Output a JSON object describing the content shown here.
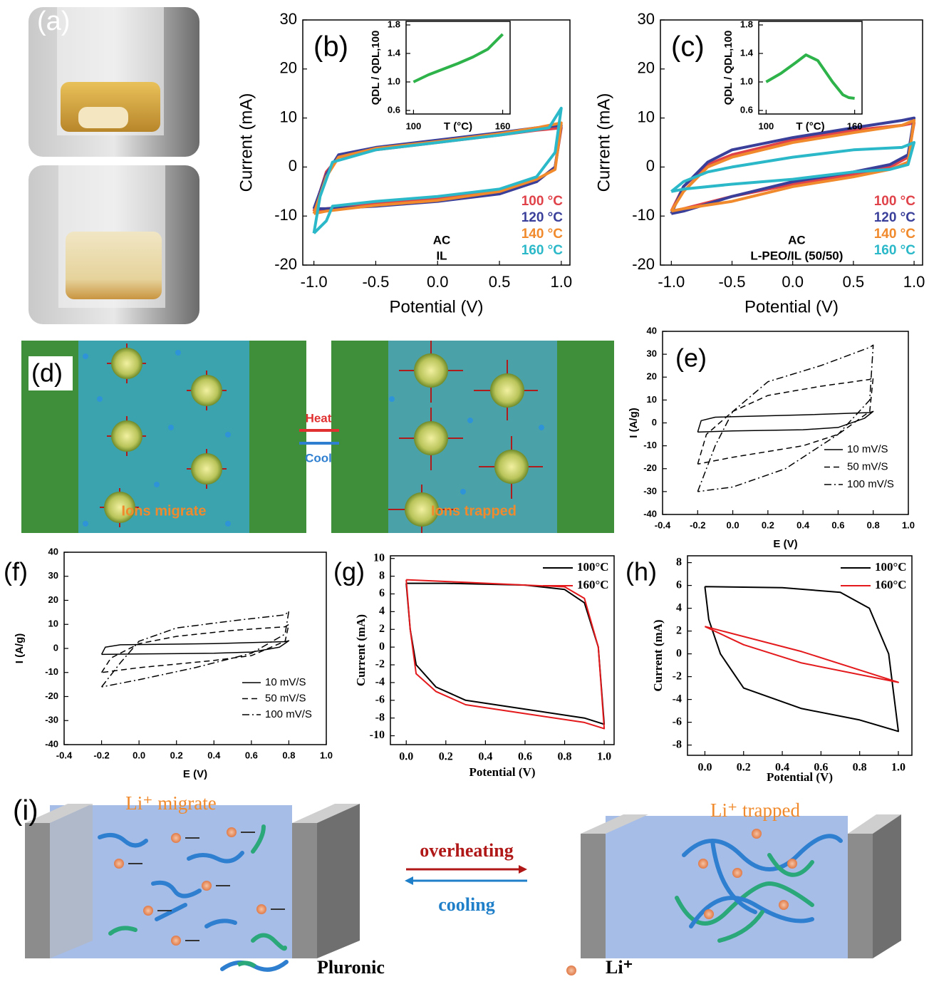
{
  "photo_a": {
    "label": "(a)"
  },
  "diagram_d": {
    "label": "(d)",
    "arrow_top": "Heat",
    "arrow_bottom": "Cool",
    "left": "Ions migrate",
    "right": "Ions trapped"
  },
  "diagram_i": {
    "label": "(i)",
    "left": "Li⁺ migrate",
    "right": "Li⁺ trapped",
    "arrow_top": "overheating",
    "arrow_bottom": "cooling",
    "legend": [
      "Pluronic",
      "Li⁺"
    ]
  },
  "chart_data": [
    {
      "type": "line",
      "panel_label": "(b)",
      "xlabel": "Potential (V)",
      "ylabel": "Current (mA)",
      "xlim": [
        -1.09,
        1.07
      ],
      "ylim": [
        -20,
        30
      ],
      "xticks": [
        {
          "value": -1,
          "label": "-1.0"
        },
        -0.5,
        {
          "value": 0,
          "label": "0.0"
        },
        0.5,
        {
          "value": 1,
          "label": "1.0"
        }
      ],
      "yticks": [
        30,
        20,
        10,
        0,
        -10,
        -20
      ],
      "annotations": [
        "AC",
        "IL"
      ],
      "legend": "lower right",
      "series": [
        {
          "name": "100 °C",
          "color": "#e0424a",
          "x": [
            -1,
            -0.9,
            -0.8,
            -0.5,
            0,
            0.5,
            0.8,
            1,
            0.95,
            0.8,
            0.5,
            0,
            -0.5,
            -0.9,
            -1
          ],
          "values": [
            -9,
            -1,
            2,
            3.5,
            5,
            6.5,
            7.5,
            8,
            0,
            -3,
            -5,
            -6.5,
            -7.5,
            -8.5,
            -9
          ]
        },
        {
          "name": "120 °C",
          "color": "#3a3f9a",
          "x": [
            -1,
            -0.9,
            -0.8,
            -0.5,
            0,
            0.5,
            0.8,
            1,
            0.95,
            0.8,
            0.5,
            0,
            -0.5,
            -0.9,
            -1
          ],
          "values": [
            -8.5,
            -1.5,
            2.5,
            4,
            5.5,
            7,
            8,
            8.5,
            0,
            -3,
            -5.5,
            -7,
            -8,
            -8.5,
            -8.5
          ]
        },
        {
          "name": "140 °C",
          "color": "#f08a2c",
          "x": [
            -1,
            -0.9,
            -0.8,
            -0.5,
            0,
            0.5,
            0.8,
            1,
            0.95,
            0.8,
            0.5,
            0,
            -0.5,
            -0.9,
            -1
          ],
          "values": [
            -9.5,
            -2,
            2,
            3.8,
            5.2,
            6.8,
            8,
            9,
            -0.5,
            -2.5,
            -5,
            -6.8,
            -7.8,
            -9,
            -9.5
          ]
        },
        {
          "name": "160 °C",
          "color": "#2bb8c8",
          "x": [
            -1,
            -0.95,
            -0.85,
            -0.5,
            0,
            0.5,
            0.9,
            1,
            0.95,
            0.8,
            0.5,
            0,
            -0.5,
            -0.85,
            -0.9,
            -1
          ],
          "values": [
            -13.5,
            -6,
            1,
            3.5,
            5,
            6.5,
            8,
            12,
            3,
            -2,
            -4.5,
            -6,
            -7,
            -8,
            -11,
            -13.5
          ]
        }
      ]
    },
    {
      "type": "line",
      "xlabel": "T (°C)",
      "ylabel": "QDL / QDL,100",
      "xlim": [
        95,
        165
      ],
      "ylim": [
        0.55,
        1.85
      ],
      "xticks": [
        100,
        160
      ],
      "yticks": [
        1.8,
        1.4,
        {
          "value": 1,
          "label": "1.0"
        },
        0.6
      ],
      "series": [
        {
          "color": "#2db34a",
          "x": [
            100,
            110,
            120,
            130,
            140,
            150,
            160
          ],
          "values": [
            1.0,
            1.1,
            1.18,
            1.26,
            1.35,
            1.46,
            1.67
          ]
        }
      ]
    },
    {
      "type": "line",
      "panel_label": "(c)",
      "xlabel": "Potential (V)",
      "ylabel": "Current (mA)",
      "xlim": [
        -1.09,
        1.07
      ],
      "ylim": [
        -20,
        30
      ],
      "xticks": [
        {
          "value": -1,
          "label": "-1.0"
        },
        -0.5,
        {
          "value": 0,
          "label": "0.0"
        },
        0.5,
        {
          "value": 1,
          "label": "1.0"
        }
      ],
      "yticks": [
        30,
        20,
        10,
        0,
        -10,
        -20
      ],
      "annotations": [
        "AC",
        "L-PEO/IL (50/50)"
      ],
      "legend": "lower right",
      "series": [
        {
          "name": "100 °C",
          "color": "#e0424a",
          "x": [
            -1,
            -0.9,
            -0.7,
            -0.5,
            0,
            0.5,
            0.9,
            1,
            0.95,
            0.8,
            0.5,
            0,
            -0.5,
            -0.9,
            -1
          ],
          "values": [
            -9,
            -4,
            0.5,
            2.5,
            5.5,
            7.5,
            8.5,
            9,
            2,
            0,
            -1.5,
            -3.5,
            -6,
            -8.5,
            -9
          ]
        },
        {
          "name": "120 °C",
          "color": "#3a3f9a",
          "x": [
            -1,
            -0.9,
            -0.7,
            -0.5,
            0,
            0.5,
            0.9,
            1,
            0.95,
            0.8,
            0.5,
            0,
            -0.5,
            -0.9,
            -1
          ],
          "values": [
            -9.5,
            -4,
            1,
            3.5,
            6,
            8,
            9.5,
            10,
            2.5,
            0.5,
            -1,
            -3,
            -6,
            -9,
            -9.5
          ]
        },
        {
          "name": "140 °C",
          "color": "#f08a2c",
          "x": [
            -1,
            -0.9,
            -0.7,
            -0.5,
            0,
            0.5,
            0.9,
            1,
            0.95,
            0.8,
            0.5,
            0,
            -0.5,
            -0.9,
            -1
          ],
          "values": [
            -9,
            -5,
            0,
            2,
            5,
            7,
            8.5,
            9.5,
            1,
            -0.5,
            -2,
            -4,
            -7,
            -8.5,
            -9
          ]
        },
        {
          "name": "160 °C",
          "color": "#2bb8c8",
          "x": [
            -1,
            -0.9,
            -0.7,
            -0.5,
            0,
            0.5,
            0.9,
            1,
            0.95,
            0.8,
            0.5,
            0,
            -0.5,
            -0.9,
            -1
          ],
          "values": [
            -5,
            -3,
            -1,
            0,
            2,
            3.5,
            4,
            5,
            0.5,
            -0.5,
            -1,
            -2.5,
            -3.5,
            -4.5,
            -5
          ]
        }
      ]
    },
    {
      "type": "line",
      "xlabel": "T (°C)",
      "ylabel": "QDL / QDL,100",
      "xlim": [
        95,
        165
      ],
      "ylim": [
        0.55,
        1.85
      ],
      "xticks": [
        100,
        160
      ],
      "yticks": [
        1.8,
        1.4,
        {
          "value": 1,
          "label": "1.0"
        },
        0.6
      ],
      "series": [
        {
          "color": "#2db34a",
          "x": [
            100,
            110,
            120,
            127,
            135,
            145,
            152,
            156,
            160
          ],
          "values": [
            1.0,
            1.12,
            1.27,
            1.38,
            1.3,
            1.0,
            0.82,
            0.78,
            0.77
          ]
        }
      ]
    },
    {
      "type": "line",
      "panel_label": "(e)",
      "xlabel": "E (V)",
      "ylabel": "I (A/g)",
      "xlim": [
        -0.4,
        1.0
      ],
      "ylim": [
        -40,
        40
      ],
      "xticks": [
        -0.4,
        -0.2,
        {
          "value": 0,
          "label": "0.0"
        },
        0.2,
        0.4,
        0.6,
        0.8,
        {
          "value": 1,
          "label": "1.0"
        }
      ],
      "yticks": [
        40,
        30,
        20,
        10,
        0,
        -10,
        -20,
        -30,
        -40
      ],
      "legend": "lower right",
      "series": [
        {
          "name": "10 mV/S",
          "color": "#000000",
          "dash": "solid",
          "x": [
            -0.2,
            -0.18,
            -0.1,
            0.4,
            0.78,
            0.8,
            0.75,
            0.6,
            0.4,
            0,
            -0.2
          ],
          "values": [
            -4,
            1,
            2.5,
            3.5,
            4.5,
            5,
            2,
            -2,
            -3,
            -3.5,
            -4
          ]
        },
        {
          "name": "50 mV/S",
          "color": "#000000",
          "dash": "dashed",
          "x": [
            -0.2,
            -0.15,
            0,
            0.2,
            0.5,
            0.78,
            0.8,
            0.78,
            0.6,
            0.4,
            0,
            -0.2
          ],
          "values": [
            -18,
            -5,
            5,
            12,
            16,
            19,
            20,
            5,
            -5,
            -10,
            -15,
            -18
          ]
        },
        {
          "name": "100 mV/S",
          "color": "#000000",
          "dash": "dashdot",
          "x": [
            -0.2,
            -0.1,
            0,
            0.2,
            0.5,
            0.78,
            0.8,
            0.78,
            0.6,
            0.3,
            0,
            -0.2
          ],
          "values": [
            -30,
            -10,
            5,
            18,
            25,
            33,
            34,
            10,
            -5,
            -20,
            -28,
            -30
          ]
        }
      ]
    },
    {
      "type": "line",
      "panel_label": "(f)",
      "xlabel": "E (V)",
      "ylabel": "I (A/g)",
      "xlim": [
        -0.4,
        1.0
      ],
      "ylim": [
        -40,
        40
      ],
      "xticks": [
        -0.4,
        -0.2,
        {
          "value": 0,
          "label": "0.0"
        },
        0.2,
        0.4,
        0.6,
        0.8,
        {
          "value": 1,
          "label": "1.0"
        }
      ],
      "yticks": [
        40,
        30,
        20,
        10,
        0,
        -10,
        -20,
        -30,
        -40
      ],
      "legend": "lower right",
      "series": [
        {
          "name": "10 mV/S",
          "color": "#000000",
          "dash": "solid",
          "x": [
            -0.2,
            -0.18,
            -0.1,
            0.4,
            0.78,
            0.8,
            0.75,
            0.6,
            0.4,
            0,
            -0.2
          ],
          "values": [
            -2.5,
            0.5,
            1.5,
            2,
            2.8,
            3.2,
            0.5,
            -1.5,
            -2,
            -2.3,
            -2.5
          ]
        },
        {
          "name": "50 mV/S",
          "color": "#000000",
          "dash": "dashed",
          "x": [
            -0.2,
            -0.15,
            0,
            0.2,
            0.5,
            0.78,
            0.8,
            0.78,
            0.6,
            0.4,
            0,
            -0.2
          ],
          "values": [
            -10,
            -4,
            2,
            5,
            7.5,
            9,
            10,
            3,
            -3,
            -5,
            -8,
            -10
          ]
        },
        {
          "name": "100 mV/S",
          "color": "#000000",
          "dash": "dashdot",
          "x": [
            -0.2,
            -0.1,
            0,
            0.2,
            0.5,
            0.78,
            0.8,
            0.78,
            0.6,
            0.3,
            0,
            -0.2
          ],
          "values": [
            -16,
            -6,
            3,
            8.5,
            11.5,
            14,
            15.5,
            6,
            -2,
            -8,
            -13,
            -16
          ]
        }
      ]
    },
    {
      "type": "line",
      "panel_label": "(g)",
      "xlabel": "Potential (V)",
      "ylabel": "Current (mA)",
      "xlim": [
        -0.08,
        1.05
      ],
      "ylim": [
        -11,
        10.3
      ],
      "xticks": [
        {
          "value": 0,
          "label": "0.0"
        },
        0.2,
        0.4,
        0.6,
        0.8,
        {
          "value": 1,
          "label": "1.0"
        }
      ],
      "yticks": [
        10,
        8,
        6,
        4,
        2,
        0,
        -2,
        -4,
        -6,
        -8,
        -10
      ],
      "legend": "upper right",
      "series": [
        {
          "name": "100°C",
          "color": "#000000",
          "x": [
            0,
            0.2,
            0.6,
            0.8,
            0.9,
            0.97,
            1,
            0.9,
            0.6,
            0.3,
            0.15,
            0.05,
            0.02,
            0
          ],
          "values": [
            7.2,
            7.2,
            7,
            6.5,
            5,
            0,
            -8.7,
            -8,
            -7,
            -6,
            -4.5,
            -2,
            2,
            7.2
          ]
        },
        {
          "name": "160°C",
          "color": "#e3191c",
          "x": [
            0,
            0.3,
            0.6,
            0.8,
            0.9,
            0.97,
            1,
            0.9,
            0.6,
            0.3,
            0.15,
            0.05,
            0.02,
            0
          ],
          "values": [
            7.6,
            7.3,
            7,
            6.8,
            5.5,
            0,
            -9.2,
            -8.5,
            -7.5,
            -6.5,
            -5,
            -3,
            2,
            7.6
          ]
        }
      ]
    },
    {
      "type": "line",
      "panel_label": "(h)",
      "xlabel": "Potential (V)",
      "ylabel": "Current (mA)",
      "xlim": [
        -0.09,
        1.07
      ],
      "ylim": [
        -8.9,
        8.6
      ],
      "xticks": [
        {
          "value": 0,
          "label": "0.0"
        },
        0.2,
        0.4,
        0.6,
        0.8,
        {
          "value": 1,
          "label": "1.0"
        }
      ],
      "yticks": [
        8,
        6,
        4,
        2,
        0,
        -2,
        -4,
        -6,
        -8
      ],
      "legend": "upper right",
      "series": [
        {
          "name": "100°C",
          "color": "#000000",
          "x": [
            0,
            0.4,
            0.7,
            0.85,
            0.95,
            1,
            0.8,
            0.5,
            0.2,
            0.08,
            0.02,
            0
          ],
          "values": [
            5.9,
            5.8,
            5.4,
            4,
            0,
            -6.8,
            -5.8,
            -4.8,
            -3,
            0,
            3,
            5.9
          ]
        },
        {
          "name": "160°C",
          "color": "#e3191c",
          "x": [
            0,
            0.5,
            1,
            0.5,
            0.2,
            0
          ],
          "values": [
            2.4,
            0.2,
            -2.5,
            -0.8,
            0.8,
            2.4
          ]
        }
      ]
    }
  ]
}
